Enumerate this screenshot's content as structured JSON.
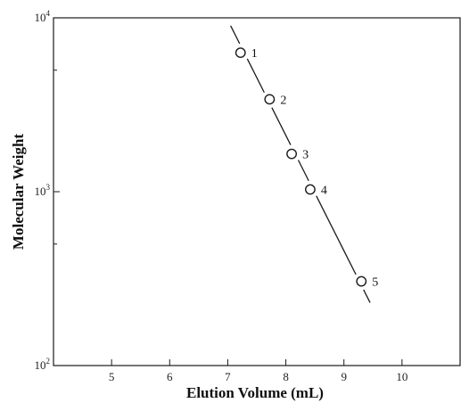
{
  "chart_data": {
    "type": "scatter",
    "xlabel": "Elution Volume (mL)",
    "ylabel": "Molecular Weight",
    "xlim": [
      4.0,
      11.0
    ],
    "ylim": [
      100,
      10000
    ],
    "y_scale": "log",
    "x_ticks": [
      5,
      6,
      7,
      8,
      9,
      10
    ],
    "x_tick_labels": [
      "5",
      "6",
      "7",
      "8",
      "9",
      "10"
    ],
    "y_ticks": [
      100,
      1000,
      10000
    ],
    "y_tick_base": "10",
    "y_tick_exponents": [
      "2",
      "3",
      "4"
    ],
    "grid": false,
    "points": [
      {
        "label": "1",
        "x": 7.22,
        "y": 6300
      },
      {
        "label": "2",
        "x": 7.72,
        "y": 3400
      },
      {
        "label": "3",
        "x": 8.1,
        "y": 1650
      },
      {
        "label": "4",
        "x": 8.42,
        "y": 1030
      },
      {
        "label": "5",
        "x": 9.3,
        "y": 305
      }
    ],
    "fit_line": {
      "x": [
        7.05,
        9.45
      ],
      "y": [
        9000,
        230
      ]
    },
    "colors": {
      "ink": "#1a1a1a",
      "background": "#ffffff"
    }
  }
}
